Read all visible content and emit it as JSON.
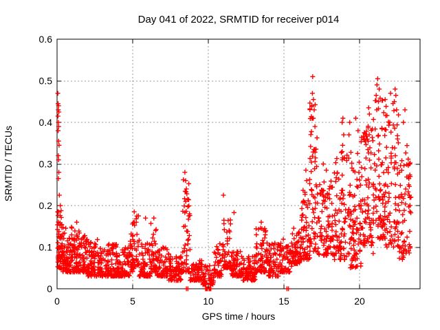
{
  "page": {
    "background": "#ffffff",
    "text_color": "#000000",
    "border_color": "#000000",
    "grid_color": "#9a9a9a"
  },
  "chart_data": {
    "type": "scatter",
    "title": "Day 041 of 2022, SRMTID for receiver p014",
    "xlabel": "GPS time / hours",
    "ylabel": "SRMTID / TECUs",
    "xlim": [
      0,
      24
    ],
    "ylim": [
      0,
      0.6
    ],
    "xticks": [
      0,
      5,
      10,
      15,
      20
    ],
    "xtick_labels": [
      "0",
      "5",
      "10",
      "15",
      "20"
    ],
    "yticks": [
      0,
      0.1,
      0.2,
      0.3,
      0.4,
      0.5,
      0.6
    ],
    "ytick_labels": [
      "0",
      "0.1",
      "0.2",
      "0.3",
      "0.4",
      "0.5",
      "0.6"
    ],
    "grid": true,
    "legend": "none",
    "marker": {
      "shape": "plus",
      "color": "#ff0000",
      "size": 7,
      "stroke_width": 1.4
    },
    "series": [
      {
        "name": "SRMTID",
        "seed": 20220411,
        "outlier_points": [
          [
            0.05,
            0.47
          ],
          [
            0.07,
            0.445
          ],
          [
            0.1,
            0.44
          ],
          [
            0.08,
            0.43
          ],
          [
            0.12,
            0.425
          ],
          [
            0.06,
            0.415
          ],
          [
            0.09,
            0.4
          ],
          [
            0.11,
            0.39
          ],
          [
            0.07,
            0.38
          ],
          [
            0.1,
            0.355
          ],
          [
            0.13,
            0.345
          ],
          [
            0.08,
            0.32
          ],
          [
            0.1,
            0.31
          ],
          [
            0.12,
            0.28
          ],
          [
            0.09,
            0.265
          ],
          [
            0.15,
            0.225
          ],
          [
            0.22,
            0.2
          ],
          [
            1.3,
            0.16
          ],
          [
            5.1,
            0.185
          ],
          [
            5.85,
            0.17
          ],
          [
            6.4,
            0.17
          ],
          [
            8.45,
            0.28
          ],
          [
            8.5,
            0.26
          ],
          [
            8.55,
            0.24
          ],
          [
            11.0,
            0.225
          ],
          [
            11.7,
            0.183
          ],
          [
            13.5,
            0.16
          ],
          [
            16.45,
            0.285
          ],
          [
            16.5,
            0.26
          ],
          [
            16.9,
            0.51
          ],
          [
            16.88,
            0.47
          ],
          [
            16.95,
            0.455
          ],
          [
            16.85,
            0.44
          ],
          [
            17.0,
            0.43
          ],
          [
            16.92,
            0.41
          ],
          [
            17.05,
            0.39
          ],
          [
            17.6,
            0.3
          ],
          [
            17.8,
            0.285
          ],
          [
            18.9,
            0.41
          ],
          [
            18.85,
            0.4
          ],
          [
            18.95,
            0.37
          ],
          [
            18.88,
            0.345
          ],
          [
            19.35,
            0.4
          ],
          [
            19.3,
            0.37
          ],
          [
            19.75,
            0.41
          ],
          [
            19.9,
            0.38
          ],
          [
            20.6,
            0.435
          ],
          [
            20.65,
            0.42
          ],
          [
            21.2,
            0.505
          ],
          [
            21.15,
            0.49
          ],
          [
            21.3,
            0.48
          ],
          [
            21.1,
            0.465
          ],
          [
            21.25,
            0.45
          ],
          [
            22.05,
            0.47
          ],
          [
            22.35,
            0.48
          ],
          [
            22.4,
            0.465
          ],
          [
            22.3,
            0.45
          ],
          [
            22.45,
            0.43
          ],
          [
            23.0,
            0.43
          ],
          [
            22.9,
            0.4
          ],
          [
            23.3,
            0.3
          ],
          [
            23.35,
            0.27
          ],
          [
            23.25,
            0.25
          ],
          [
            23.4,
            0.22
          ],
          [
            22.9,
            0.085
          ],
          [
            23.1,
            0.09
          ],
          [
            20.9,
            0.085
          ]
        ],
        "zero_points": [
          8.55,
          8.65,
          9.82,
          9.85,
          9.88,
          9.91,
          9.94,
          10.05,
          10.08,
          10.11,
          10.14,
          10.17,
          15.2,
          15.3
        ],
        "cloud_bands": [
          [
            0.02,
            0.35,
            60,
            0.05,
            0.19,
            1.6
          ],
          [
            0.35,
            1.0,
            85,
            0.04,
            0.15,
            2
          ],
          [
            1.0,
            2.0,
            115,
            0.04,
            0.14,
            2
          ],
          [
            2.0,
            3.0,
            110,
            0.03,
            0.12,
            2
          ],
          [
            3.0,
            4.0,
            100,
            0.03,
            0.11,
            2
          ],
          [
            4.0,
            4.8,
            70,
            0.03,
            0.1,
            2
          ],
          [
            4.8,
            5.4,
            55,
            0.04,
            0.18,
            2
          ],
          [
            5.4,
            6.2,
            70,
            0.03,
            0.12,
            2
          ],
          [
            6.2,
            6.6,
            35,
            0.04,
            0.16,
            2
          ],
          [
            6.6,
            7.4,
            70,
            0.03,
            0.1,
            2
          ],
          [
            7.4,
            8.3,
            75,
            0.02,
            0.08,
            2
          ],
          [
            8.3,
            8.8,
            50,
            0.04,
            0.27,
            2
          ],
          [
            8.8,
            9.6,
            65,
            0.02,
            0.07,
            2
          ],
          [
            9.6,
            10.4,
            55,
            0.01,
            0.06,
            2
          ],
          [
            10.4,
            10.9,
            40,
            0.03,
            0.11,
            2
          ],
          [
            10.9,
            11.5,
            50,
            0.05,
            0.2,
            2
          ],
          [
            11.5,
            12.3,
            70,
            0.03,
            0.09,
            2
          ],
          [
            12.3,
            13.1,
            70,
            0.02,
            0.08,
            2
          ],
          [
            13.1,
            13.9,
            75,
            0.04,
            0.15,
            2
          ],
          [
            13.9,
            14.7,
            65,
            0.03,
            0.11,
            2
          ],
          [
            14.7,
            15.5,
            65,
            0.04,
            0.12,
            2
          ],
          [
            15.5,
            16.1,
            55,
            0.06,
            0.15,
            2
          ],
          [
            16.1,
            16.7,
            60,
            0.07,
            0.24,
            1.8
          ],
          [
            16.7,
            17.2,
            60,
            0.09,
            0.45,
            1.8
          ],
          [
            17.2,
            18.3,
            95,
            0.08,
            0.26,
            1.8
          ],
          [
            18.3,
            19.3,
            90,
            0.07,
            0.33,
            1.8
          ],
          [
            19.3,
            20.1,
            85,
            0.05,
            0.33,
            1.8
          ],
          [
            20.1,
            21.0,
            95,
            0.1,
            0.41,
            1.5
          ],
          [
            21.0,
            21.7,
            75,
            0.12,
            0.46,
            1.5
          ],
          [
            21.7,
            22.6,
            85,
            0.1,
            0.45,
            1.5
          ],
          [
            22.6,
            23.4,
            65,
            0.07,
            0.35,
            1.5
          ]
        ]
      }
    ]
  }
}
